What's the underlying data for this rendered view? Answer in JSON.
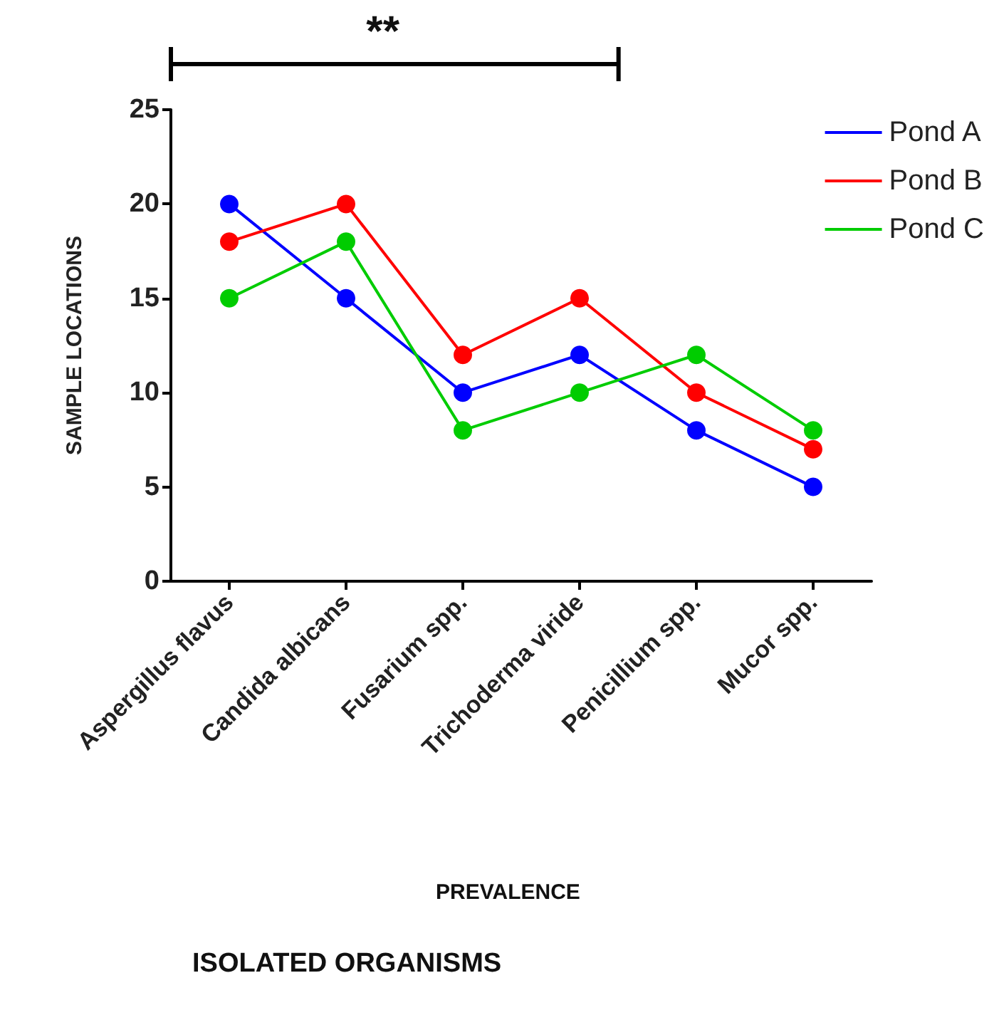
{
  "chart_data": {
    "type": "line",
    "ylabel": "SAMPLE LOCATIONS",
    "annotations": [
      "**",
      "PREVALENCE",
      "ISOLATED ORGANISMS"
    ],
    "categories": [
      "Aspergillus flavus",
      "Candida albicans",
      "Fusarium spp.",
      "Trichoderma viride",
      "Penicillium spp.",
      "Mucor spp."
    ],
    "series": [
      {
        "name": "Pond A",
        "color": "#0000ff",
        "values": [
          20,
          15,
          10,
          12,
          8,
          5
        ]
      },
      {
        "name": "Pond B",
        "color": "#ff0000",
        "values": [
          18,
          20,
          12,
          15,
          10,
          7
        ]
      },
      {
        "name": "Pond C",
        "color": "#00cc00",
        "values": [
          15,
          18,
          8,
          10,
          12,
          8
        ]
      }
    ],
    "ylim": [
      0,
      25
    ],
    "yticks": [
      0,
      5,
      10,
      15,
      20,
      25
    ],
    "grid": false,
    "legend": "top right",
    "marker": "circle",
    "line_style": "solid"
  }
}
